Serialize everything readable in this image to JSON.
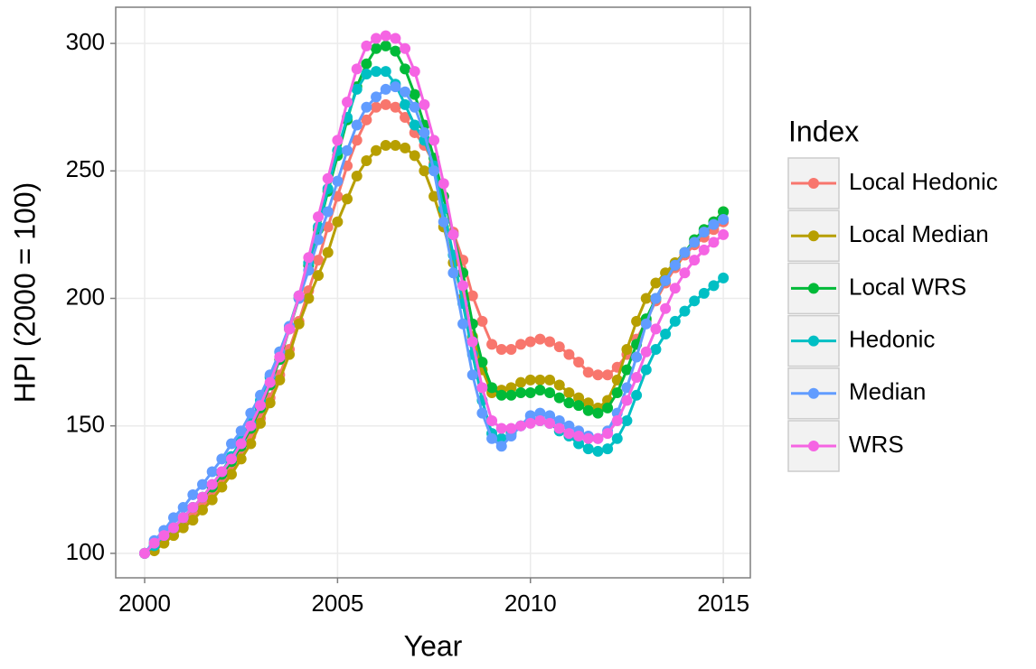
{
  "chart_data": {
    "type": "line",
    "x_label": "Year",
    "y_label": "HPI (2000 = 100)",
    "legend_title": "Index",
    "legend": "right",
    "grid": true,
    "xlim": [
      1999.25,
      2015.7
    ],
    "ylim": [
      90.4,
      314.2
    ],
    "xticks": [
      2000,
      2005,
      2010,
      2015
    ],
    "yticks": [
      100,
      150,
      200,
      250,
      300
    ],
    "x": [
      2000,
      2000.25,
      2000.5,
      2000.75,
      2001,
      2001.25,
      2001.5,
      2001.75,
      2002,
      2002.25,
      2002.5,
      2002.75,
      2003,
      2003.25,
      2003.5,
      2003.75,
      2004,
      2004.25,
      2004.5,
      2004.75,
      2005,
      2005.25,
      2005.5,
      2005.75,
      2006,
      2006.25,
      2006.5,
      2006.75,
      2007,
      2007.25,
      2007.5,
      2007.75,
      2008,
      2008.25,
      2008.5,
      2008.75,
      2009,
      2009.25,
      2009.5,
      2009.75,
      2010,
      2010.25,
      2010.5,
      2010.75,
      2011,
      2011.25,
      2011.5,
      2011.75,
      2012,
      2012.25,
      2012.5,
      2012.75,
      2013,
      2013.25,
      2013.5,
      2013.75,
      2014,
      2014.25,
      2014.5,
      2014.75,
      2015
    ],
    "series": [
      {
        "name": "Local Hedonic",
        "color": "#F8766D",
        "values": [
          100,
          103,
          106,
          109,
          112,
          116,
          120,
          124,
          129,
          134,
          140,
          146,
          153,
          161,
          170,
          180,
          191,
          203,
          215,
          228,
          240,
          252,
          262,
          270,
          275,
          276,
          275,
          271,
          265,
          260,
          253,
          240,
          226,
          215,
          201,
          191,
          182,
          180,
          180,
          182,
          183,
          184,
          183,
          181,
          178,
          175,
          171,
          170,
          170,
          173,
          178,
          184,
          191,
          199,
          206,
          212,
          217,
          221,
          224,
          227,
          230
        ]
      },
      {
        "name": "Local Median",
        "color": "#B79F00",
        "values": [
          100,
          101,
          104,
          107,
          110,
          113,
          117,
          121,
          126,
          131,
          137,
          143,
          151,
          159,
          168,
          178,
          190,
          200,
          209,
          218,
          230,
          239,
          248,
          254,
          258,
          260,
          260,
          259,
          256,
          250,
          240,
          228,
          214,
          200,
          185,
          172,
          163,
          164,
          165,
          167,
          168,
          168,
          168,
          166,
          163,
          161,
          159,
          157,
          160,
          168,
          180,
          191,
          200,
          206,
          210,
          214,
          218,
          222,
          226,
          230,
          234
        ]
      },
      {
        "name": "Local WRS",
        "color": "#00BA38",
        "values": [
          100,
          104,
          107,
          110,
          114,
          118,
          122,
          126,
          131,
          136,
          142,
          149,
          157,
          166,
          176,
          188,
          200,
          213,
          227,
          242,
          256,
          270,
          283,
          292,
          298,
          299,
          297,
          290,
          280,
          268,
          255,
          240,
          225,
          210,
          190,
          175,
          165,
          162,
          162,
          163,
          163,
          164,
          163,
          161,
          159,
          158,
          156,
          155,
          157,
          163,
          172,
          182,
          192,
          200,
          207,
          213,
          218,
          223,
          227,
          230,
          234
        ]
      },
      {
        "name": "Hedonic",
        "color": "#00BFC4",
        "values": [
          100,
          103,
          107,
          110,
          114,
          118,
          122,
          127,
          132,
          138,
          144,
          151,
          160,
          169,
          179,
          189,
          201,
          214,
          228,
          243,
          258,
          271,
          282,
          288,
          289,
          289,
          284,
          276,
          268,
          262,
          252,
          235,
          217,
          198,
          178,
          160,
          147,
          145,
          147,
          150,
          152,
          152,
          151,
          148,
          146,
          143,
          141,
          140,
          141,
          145,
          152,
          162,
          172,
          180,
          186,
          191,
          195,
          199,
          202,
          205,
          208
        ]
      },
      {
        "name": "Median",
        "color": "#619CFF",
        "values": [
          100,
          105,
          109,
          114,
          118,
          123,
          127,
          132,
          137,
          143,
          148,
          155,
          162,
          170,
          179,
          189,
          200,
          211,
          223,
          234,
          246,
          258,
          268,
          275,
          279,
          282,
          283,
          281,
          275,
          265,
          250,
          230,
          210,
          190,
          170,
          155,
          145,
          142,
          146,
          150,
          154,
          155,
          154,
          152,
          150,
          148,
          146,
          145,
          148,
          155,
          165,
          177,
          190,
          200,
          207,
          213,
          218,
          222,
          226,
          229,
          231
        ]
      },
      {
        "name": "WRS",
        "color": "#F564E3",
        "values": [
          100,
          104,
          107,
          110,
          114,
          118,
          122,
          127,
          132,
          137,
          143,
          150,
          158,
          167,
          177,
          188,
          201,
          216,
          232,
          247,
          262,
          277,
          290,
          299,
          302,
          303,
          302,
          298,
          289,
          276,
          262,
          245,
          225,
          205,
          183,
          165,
          152,
          149,
          149,
          150,
          151,
          152,
          151,
          149,
          147,
          146,
          145,
          145,
          147,
          152,
          160,
          169,
          179,
          188,
          196,
          204,
          210,
          215,
          219,
          222,
          225
        ]
      }
    ]
  }
}
